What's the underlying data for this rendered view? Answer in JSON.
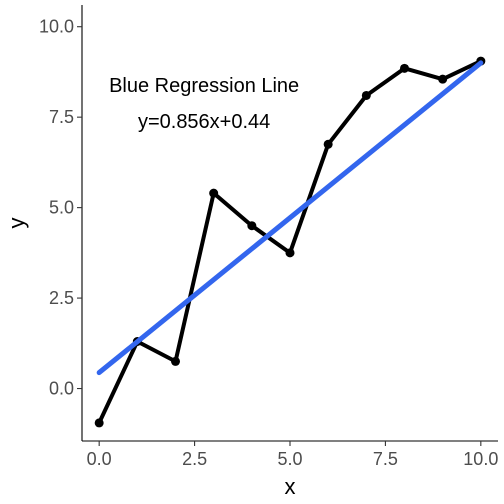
{
  "chart_data": {
    "type": "line",
    "title": "",
    "xlabel": "x",
    "ylabel": "y",
    "xlim": [
      -0.45,
      10.45
    ],
    "ylim": [
      -1.45,
      10.6
    ],
    "x_ticks": [
      0,
      2.5,
      5,
      7.5,
      10
    ],
    "x_tick_labels": [
      "0.0",
      "2.5",
      "5.0",
      "7.5",
      "10.0"
    ],
    "y_ticks": [
      0,
      2.5,
      5,
      7.5,
      10
    ],
    "y_tick_labels": [
      "0.0",
      "2.5",
      "5.0",
      "7.5",
      "10.0"
    ],
    "grid": false,
    "series": [
      {
        "x": [
          0,
          1,
          2,
          3,
          4,
          5,
          6,
          7,
          8,
          9,
          10
        ],
        "y": [
          -0.95,
          1.3,
          0.75,
          5.4,
          4.5,
          3.75,
          6.75,
          8.1,
          8.85,
          8.55,
          9.05
        ],
        "color": "#000000"
      }
    ],
    "regression_line": {
      "slope": 0.856,
      "intercept": 0.44,
      "x_range": [
        0,
        10
      ],
      "color": "#3366ee"
    },
    "annotations": [
      {
        "text": "Blue Regression Line",
        "x": 2.75,
        "y": 8.2
      },
      {
        "text": "y=0.856x+0.44",
        "x": 2.75,
        "y": 7.2
      }
    ]
  }
}
